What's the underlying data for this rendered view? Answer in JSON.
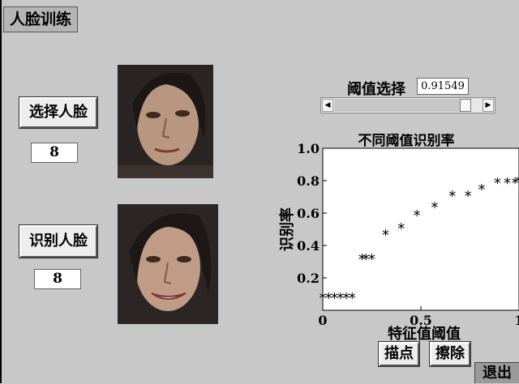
{
  "window": {
    "title": "人脸训练"
  },
  "left": {
    "select_button": "选择人脸",
    "select_value": "8",
    "recognize_button": "识别人脸",
    "recognize_value": "8"
  },
  "threshold": {
    "label": "阈值选择",
    "value": "0.91549",
    "slider_fraction": 0.92
  },
  "buttons": {
    "plot": "描点",
    "erase": "擦除",
    "exit": "退出"
  },
  "chart_data": {
    "type": "scatter",
    "title": "不同阈值识别率",
    "xlabel": "特征值阈值",
    "ylabel": "识别率",
    "xlim": [
      0,
      1
    ],
    "ylim": [
      0,
      1.0
    ],
    "xticks": [
      0,
      0.5,
      1
    ],
    "yticks": [
      0.2,
      0.4,
      0.6,
      0.8,
      1.0
    ],
    "xtick_labels": [
      "0",
      "0.5",
      "1"
    ],
    "ytick_labels": [
      "0.2",
      "0.4",
      "0.6",
      "0.8",
      "1.0"
    ],
    "marker": "*",
    "color": "#000000",
    "x": [
      0.0,
      0.03,
      0.06,
      0.09,
      0.12,
      0.15,
      0.2,
      0.22,
      0.25,
      0.32,
      0.4,
      0.48,
      0.57,
      0.66,
      0.74,
      0.81,
      0.89,
      0.94,
      0.98,
      1.0
    ],
    "y": [
      0.08,
      0.08,
      0.08,
      0.08,
      0.08,
      0.08,
      0.32,
      0.32,
      0.32,
      0.47,
      0.51,
      0.59,
      0.64,
      0.71,
      0.71,
      0.75,
      0.79,
      0.79,
      0.79,
      0.8
    ]
  }
}
